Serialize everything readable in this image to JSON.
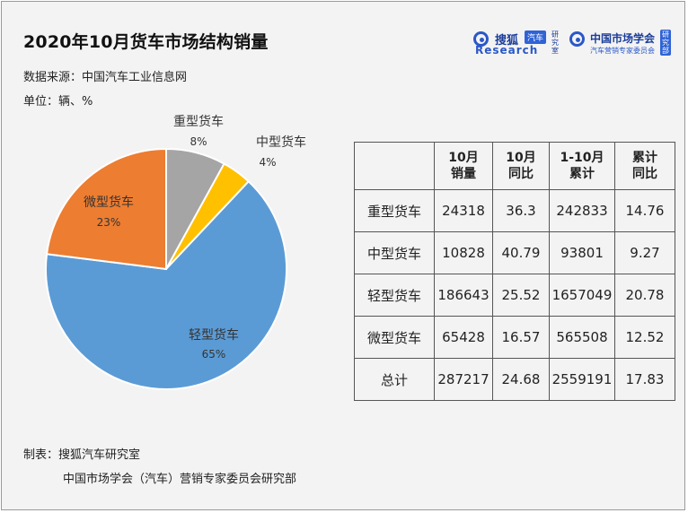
{
  "title": "2020年10月货车市场结构销量",
  "source": "数据来源：中国汽车工业信息网",
  "unit": "单位：辆、%",
  "logos": {
    "sohu_name": "搜狐",
    "sohu_tag": "汽车",
    "sohu_research": "Research",
    "sohu_vert": "研究室",
    "cma_name": "中国市场学会",
    "cma_sub": "汽车营销专家委员会",
    "cma_vert": "研究部"
  },
  "chart_data": {
    "type": "pie",
    "title": "2020年10月货车市场结构销量",
    "slices": [
      {
        "label": "重型货车",
        "pct_label": "8%",
        "value": 8,
        "color": "#a5a5a5"
      },
      {
        "label": "中型货车",
        "pct_label": "4%",
        "value": 4,
        "color": "#ffc000"
      },
      {
        "label": "轻型货车",
        "pct_label": "65%",
        "value": 65,
        "color": "#5b9bd5"
      },
      {
        "label": "微型货车",
        "pct_label": "23%",
        "value": 23,
        "color": "#ed7d31"
      }
    ],
    "start": "12 o'clock",
    "direction": "clockwise"
  },
  "table": {
    "headers": [
      {
        "l1": "",
        "l2": ""
      },
      {
        "l1": "10月",
        "l2": "销量"
      },
      {
        "l1": "10月",
        "l2": "同比"
      },
      {
        "l1": "1-10月",
        "l2": "累计"
      },
      {
        "l1": "累计",
        "l2": "同比"
      }
    ],
    "rows": [
      [
        "重型货车",
        "24318",
        "36.3",
        "242833",
        "14.76"
      ],
      [
        "中型货车",
        "10828",
        "40.79",
        "93801",
        "9.27"
      ],
      [
        "轻型货车",
        "186643",
        "25.52",
        "1657049",
        "20.78"
      ],
      [
        "微型货车",
        "65428",
        "16.57",
        "565508",
        "12.52"
      ],
      [
        "总计",
        "287217",
        "24.68",
        "2559191",
        "17.83"
      ]
    ]
  },
  "footer": {
    "maker": "制表：搜狐汽车研究室",
    "maker2": "中国市场学会（汽车）营销专家委员会研究部"
  }
}
